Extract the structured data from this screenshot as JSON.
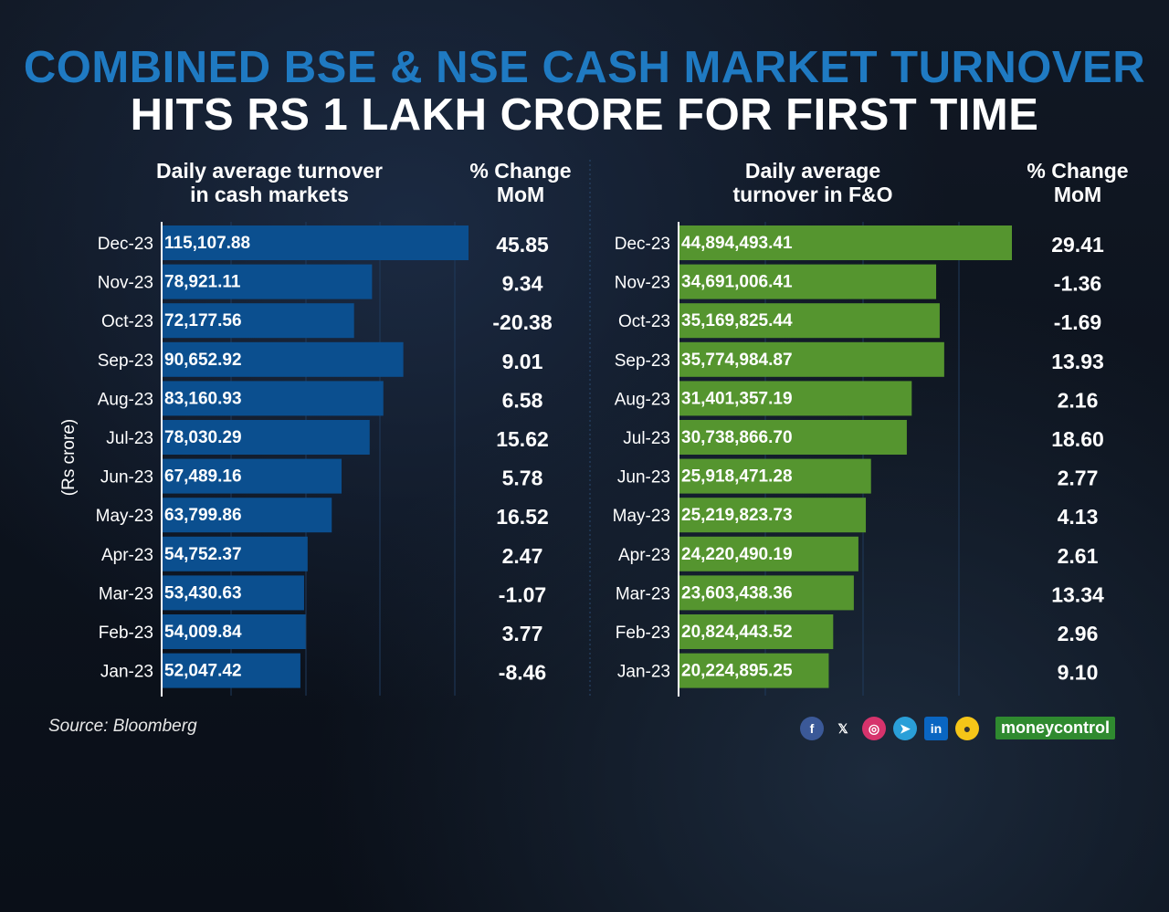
{
  "title_line1": "COMBINED BSE & NSE CASH MARKET TURNOVER",
  "title_line2": "HITS RS 1 LAKH CRORE FOR FIRST TIME",
  "source": "Source: Bloomberg",
  "unit_label": "(Rs crore)",
  "brand": "moneycontrol",
  "social_icons": [
    "facebook-icon",
    "x-icon",
    "instagram-icon",
    "telegram-icon",
    "linkedin-icon",
    "koo-icon"
  ],
  "colors": {
    "cash": "#0b4f8f",
    "fo": "#55952f",
    "title_accent": "#1f7ac2"
  },
  "chart_data": [
    {
      "type": "bar",
      "orientation": "horizontal",
      "title": "Daily average turnover in cash markets",
      "header_lines": [
        "Daily average turnover",
        "in cash markets"
      ],
      "change_header_lines": [
        "% Change",
        "MoM"
      ],
      "unit": "Rs crore",
      "categories": [
        "Dec-23",
        "Nov-23",
        "Oct-23",
        "Sep-23",
        "Aug-23",
        "Jul-23",
        "Jun-23",
        "May-23",
        "Apr-23",
        "Mar-23",
        "Feb-23",
        "Jan-23"
      ],
      "values": [
        115107.88,
        78921.11,
        72177.56,
        90652.92,
        83160.93,
        78030.29,
        67489.16,
        63799.86,
        54752.37,
        53430.63,
        54009.84,
        52047.42
      ],
      "labels": [
        "115,107.88",
        "78,921.11",
        "72,177.56",
        "90,652.92",
        "83,160.93",
        "78,030.29",
        "67,489.16",
        "63,799.86",
        "54,752.37",
        "53,430.63",
        "54,009.84",
        "52,047.42"
      ],
      "pct_change_mom": [
        "45.85",
        "9.34",
        "-20.38",
        "9.01",
        "6.58",
        "15.62",
        "5.78",
        "16.52",
        "2.47",
        "-1.07",
        "3.77",
        "-8.46"
      ]
    },
    {
      "type": "bar",
      "orientation": "horizontal",
      "title": "Daily average turnover in F&O",
      "header_lines": [
        "Daily average",
        "turnover in F&O"
      ],
      "change_header_lines": [
        "% Change",
        "MoM"
      ],
      "unit": "Rs crore",
      "categories": [
        "Dec-23",
        "Nov-23",
        "Oct-23",
        "Sep-23",
        "Aug-23",
        "Jul-23",
        "Jun-23",
        "May-23",
        "Apr-23",
        "Mar-23",
        "Feb-23",
        "Jan-23"
      ],
      "values": [
        44894493.41,
        34691006.41,
        35169825.44,
        35774984.87,
        31401357.19,
        30738866.7,
        25918471.28,
        25219823.73,
        24220490.19,
        23603438.36,
        20824443.52,
        20224895.25
      ],
      "labels": [
        "44,894,493.41",
        "34,691,006.41",
        "35,169,825.44",
        "35,774,984.87",
        "31,401,357.19",
        "30,738,866.70",
        "25,918,471.28",
        "25,219,823.73",
        "24,220,490.19",
        "23,603,438.36",
        "20,824,443.52",
        "20,224,895.25"
      ],
      "pct_change_mom": [
        "29.41",
        "-1.36",
        "-1.69",
        "13.93",
        "2.16",
        "18.60",
        "2.77",
        "4.13",
        "2.61",
        "13.34",
        "2.96",
        "9.10"
      ]
    }
  ]
}
